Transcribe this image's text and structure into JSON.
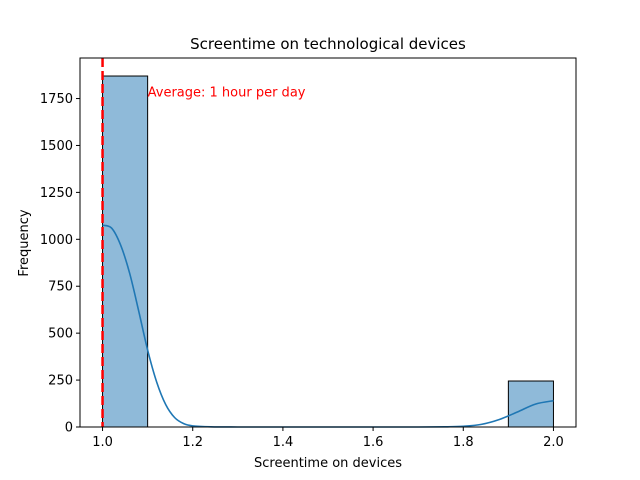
{
  "chart_data": {
    "type": "bar",
    "title": "Screentime on technological devices",
    "xlabel": "Screentime on devices",
    "ylabel": "Frequency",
    "xlim": [
      0.95,
      2.05
    ],
    "ylim": [
      0,
      1966
    ],
    "x_ticks": [
      1.0,
      1.2,
      1.4,
      1.6,
      1.8,
      2.0
    ],
    "x_tick_labels": [
      "1.0",
      "1.2",
      "1.4",
      "1.6",
      "1.8",
      "2.0"
    ],
    "y_ticks": [
      0,
      250,
      500,
      750,
      1000,
      1250,
      1500,
      1750
    ],
    "y_tick_labels": [
      "0",
      "250",
      "500",
      "750",
      "1000",
      "1250",
      "1500",
      "1750"
    ],
    "bins": [
      {
        "start": 1.0,
        "end": 1.1,
        "count": 1870
      },
      {
        "start": 1.9,
        "end": 2.0,
        "count": 245
      }
    ],
    "kde": {
      "x": [
        1.0,
        1.02,
        1.04,
        1.06,
        1.08,
        1.1,
        1.12,
        1.14,
        1.16,
        1.18,
        1.2,
        1.24,
        1.3,
        1.4,
        1.5,
        1.6,
        1.7,
        1.76,
        1.8,
        1.84,
        1.88,
        1.92,
        1.96,
        2.0
      ],
      "y": [
        1075,
        1060,
        970,
        820,
        620,
        410,
        240,
        120,
        50,
        18,
        6,
        1,
        0,
        0,
        0,
        0,
        0,
        1,
        4,
        14,
        40,
        80,
        122,
        140
      ]
    },
    "mean_line": {
      "x": 1.0,
      "label": "Average: 1 hour per day"
    },
    "colors": {
      "bar_fill": "#8fbad9",
      "bar_edge": "#000000",
      "kde_line": "#1f77b4",
      "mean_line": "#ff0000",
      "annotation": "#ff0000"
    },
    "grid": false
  }
}
